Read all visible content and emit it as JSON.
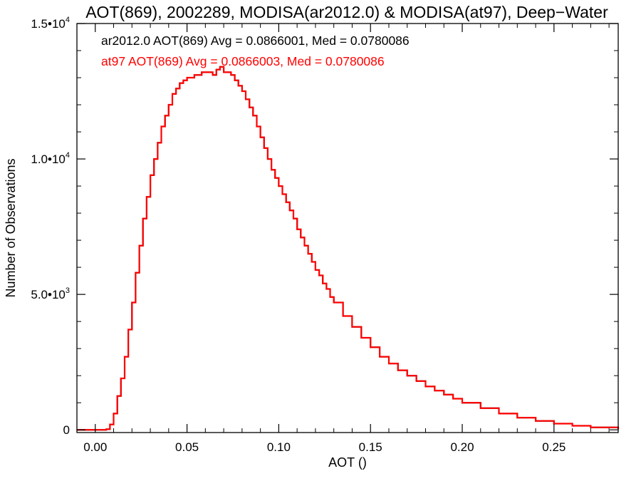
{
  "chart_data": {
    "type": "line",
    "step": true,
    "title": "AOT(869), 2002289, MODISA(ar2012.0) & MODISA(at97), Deep−Water",
    "xlabel": "AOT ()",
    "ylabel": "Number of Observations",
    "xlim": [
      -0.01,
      0.285
    ],
    "ylim": [
      -100,
      15000
    ],
    "x_ticks": [
      {
        "value": 0.0,
        "label": "0.00"
      },
      {
        "value": 0.05,
        "label": "0.05"
      },
      {
        "value": 0.1,
        "label": "0.10"
      },
      {
        "value": 0.15,
        "label": "0.15"
      },
      {
        "value": 0.2,
        "label": "0.20"
      },
      {
        "value": 0.25,
        "label": "0.25"
      }
    ],
    "y_ticks": [
      {
        "value": 0,
        "mantissa": "0",
        "exp": ""
      },
      {
        "value": 5000,
        "mantissa": "5.0•10",
        "exp": "3"
      },
      {
        "value": 10000,
        "mantissa": "1.0•10",
        "exp": "4"
      },
      {
        "value": 15000,
        "mantissa": "1.5•10",
        "exp": "4"
      }
    ],
    "annotations": [
      {
        "text": "ar2012.0 AOT(869) Avg = 0.0866001, Med = 0.0780086",
        "color": "#000000"
      },
      {
        "text": "at97 AOT(869) Avg = 0.0866003, Med = 0.0780086",
        "color": "#ff0000"
      }
    ],
    "series": [
      {
        "name": "ar2012.0",
        "color": "#000000",
        "x": [
          -0.01,
          0.006,
          0.008,
          0.01,
          0.012,
          0.014,
          0.016,
          0.018,
          0.02,
          0.022,
          0.024,
          0.026,
          0.028,
          0.03,
          0.032,
          0.034,
          0.036,
          0.038,
          0.04,
          0.042,
          0.044,
          0.046,
          0.048,
          0.05,
          0.052,
          0.054,
          0.056,
          0.058,
          0.06,
          0.062,
          0.064,
          0.066,
          0.068,
          0.07,
          0.072,
          0.074,
          0.076,
          0.078,
          0.08,
          0.082,
          0.084,
          0.086,
          0.088,
          0.09,
          0.092,
          0.094,
          0.096,
          0.098,
          0.1,
          0.102,
          0.104,
          0.106,
          0.108,
          0.11,
          0.112,
          0.114,
          0.116,
          0.118,
          0.12,
          0.122,
          0.124,
          0.126,
          0.128,
          0.13,
          0.135,
          0.14,
          0.145,
          0.15,
          0.155,
          0.16,
          0.165,
          0.17,
          0.175,
          0.18,
          0.185,
          0.19,
          0.195,
          0.2,
          0.21,
          0.22,
          0.23,
          0.24,
          0.25,
          0.26,
          0.27,
          0.285
        ],
        "values": [
          0,
          20,
          200,
          600,
          1250,
          1900,
          2700,
          3700,
          4700,
          5800,
          6800,
          7800,
          8600,
          9400,
          10000,
          10600,
          11200,
          11600,
          12000,
          12400,
          12600,
          12800,
          12900,
          13000,
          13000,
          13100,
          13100,
          13200,
          13200,
          13200,
          13100,
          13300,
          13400,
          13200,
          13200,
          13100,
          12900,
          12700,
          12500,
          12200,
          11900,
          11600,
          11200,
          10800,
          10400,
          10000,
          9600,
          9300,
          9000,
          8700,
          8400,
          8100,
          7800,
          7400,
          7100,
          6800,
          6500,
          6200,
          5900,
          5700,
          5400,
          5200,
          4900,
          4700,
          4200,
          3800,
          3400,
          3050,
          2700,
          2450,
          2200,
          2000,
          1800,
          1600,
          1450,
          1300,
          1150,
          1000,
          800,
          600,
          450,
          330,
          230,
          150,
          90,
          30
        ]
      },
      {
        "name": "at97",
        "color": "#ff0000",
        "x": [
          -0.01,
          0.006,
          0.008,
          0.01,
          0.012,
          0.014,
          0.016,
          0.018,
          0.02,
          0.022,
          0.024,
          0.026,
          0.028,
          0.03,
          0.032,
          0.034,
          0.036,
          0.038,
          0.04,
          0.042,
          0.044,
          0.046,
          0.048,
          0.05,
          0.052,
          0.054,
          0.056,
          0.058,
          0.06,
          0.062,
          0.064,
          0.066,
          0.068,
          0.07,
          0.072,
          0.074,
          0.076,
          0.078,
          0.08,
          0.082,
          0.084,
          0.086,
          0.088,
          0.09,
          0.092,
          0.094,
          0.096,
          0.098,
          0.1,
          0.102,
          0.104,
          0.106,
          0.108,
          0.11,
          0.112,
          0.114,
          0.116,
          0.118,
          0.12,
          0.122,
          0.124,
          0.126,
          0.128,
          0.13,
          0.135,
          0.14,
          0.145,
          0.15,
          0.155,
          0.16,
          0.165,
          0.17,
          0.175,
          0.18,
          0.185,
          0.19,
          0.195,
          0.2,
          0.21,
          0.22,
          0.23,
          0.24,
          0.25,
          0.26,
          0.27,
          0.285
        ],
        "values": [
          0,
          20,
          200,
          600,
          1250,
          1900,
          2700,
          3700,
          4700,
          5800,
          6800,
          7800,
          8600,
          9400,
          10000,
          10600,
          11200,
          11600,
          12000,
          12400,
          12600,
          12800,
          12900,
          13000,
          13000,
          13100,
          13100,
          13200,
          13200,
          13200,
          13100,
          13300,
          13400,
          13200,
          13200,
          13100,
          12900,
          12700,
          12500,
          12200,
          11900,
          11600,
          11200,
          10800,
          10400,
          10000,
          9600,
          9300,
          9000,
          8700,
          8400,
          8100,
          7800,
          7400,
          7100,
          6800,
          6500,
          6200,
          5900,
          5700,
          5400,
          5200,
          4900,
          4700,
          4200,
          3800,
          3400,
          3050,
          2700,
          2450,
          2200,
          2000,
          1800,
          1600,
          1450,
          1300,
          1150,
          1000,
          800,
          600,
          450,
          330,
          230,
          150,
          90,
          30
        ]
      }
    ]
  }
}
